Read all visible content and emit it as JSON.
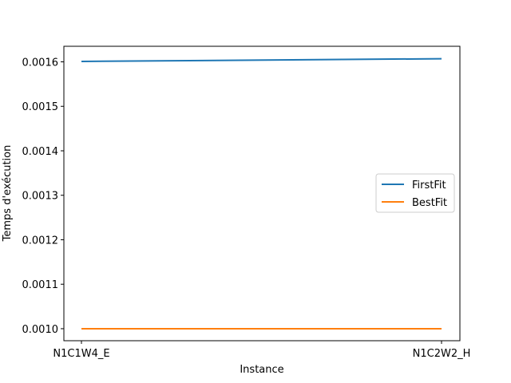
{
  "chart_data": {
    "type": "line",
    "title": "",
    "xlabel": "Instance",
    "ylabel": "Temps d'exécution",
    "categories": [
      "N1C1W4_E",
      "N1C2W2_H"
    ],
    "series": [
      {
        "name": "FirstFit",
        "values": [
          0.001601,
          0.001607
        ],
        "color": "#1f77b4"
      },
      {
        "name": "BestFit",
        "values": [
          0.001,
          0.001
        ],
        "color": "#ff7f0e"
      }
    ],
    "ylim": [
      0.000973,
      0.001635
    ],
    "yticks": [
      "0.0010",
      "0.0011",
      "0.0012",
      "0.0013",
      "0.0014",
      "0.0015",
      "0.0016"
    ],
    "ytick_values": [
      0.001,
      0.0011,
      0.0012,
      0.0013,
      0.0014,
      0.0015,
      0.0016
    ],
    "grid": false,
    "legend_position": "center-right"
  }
}
